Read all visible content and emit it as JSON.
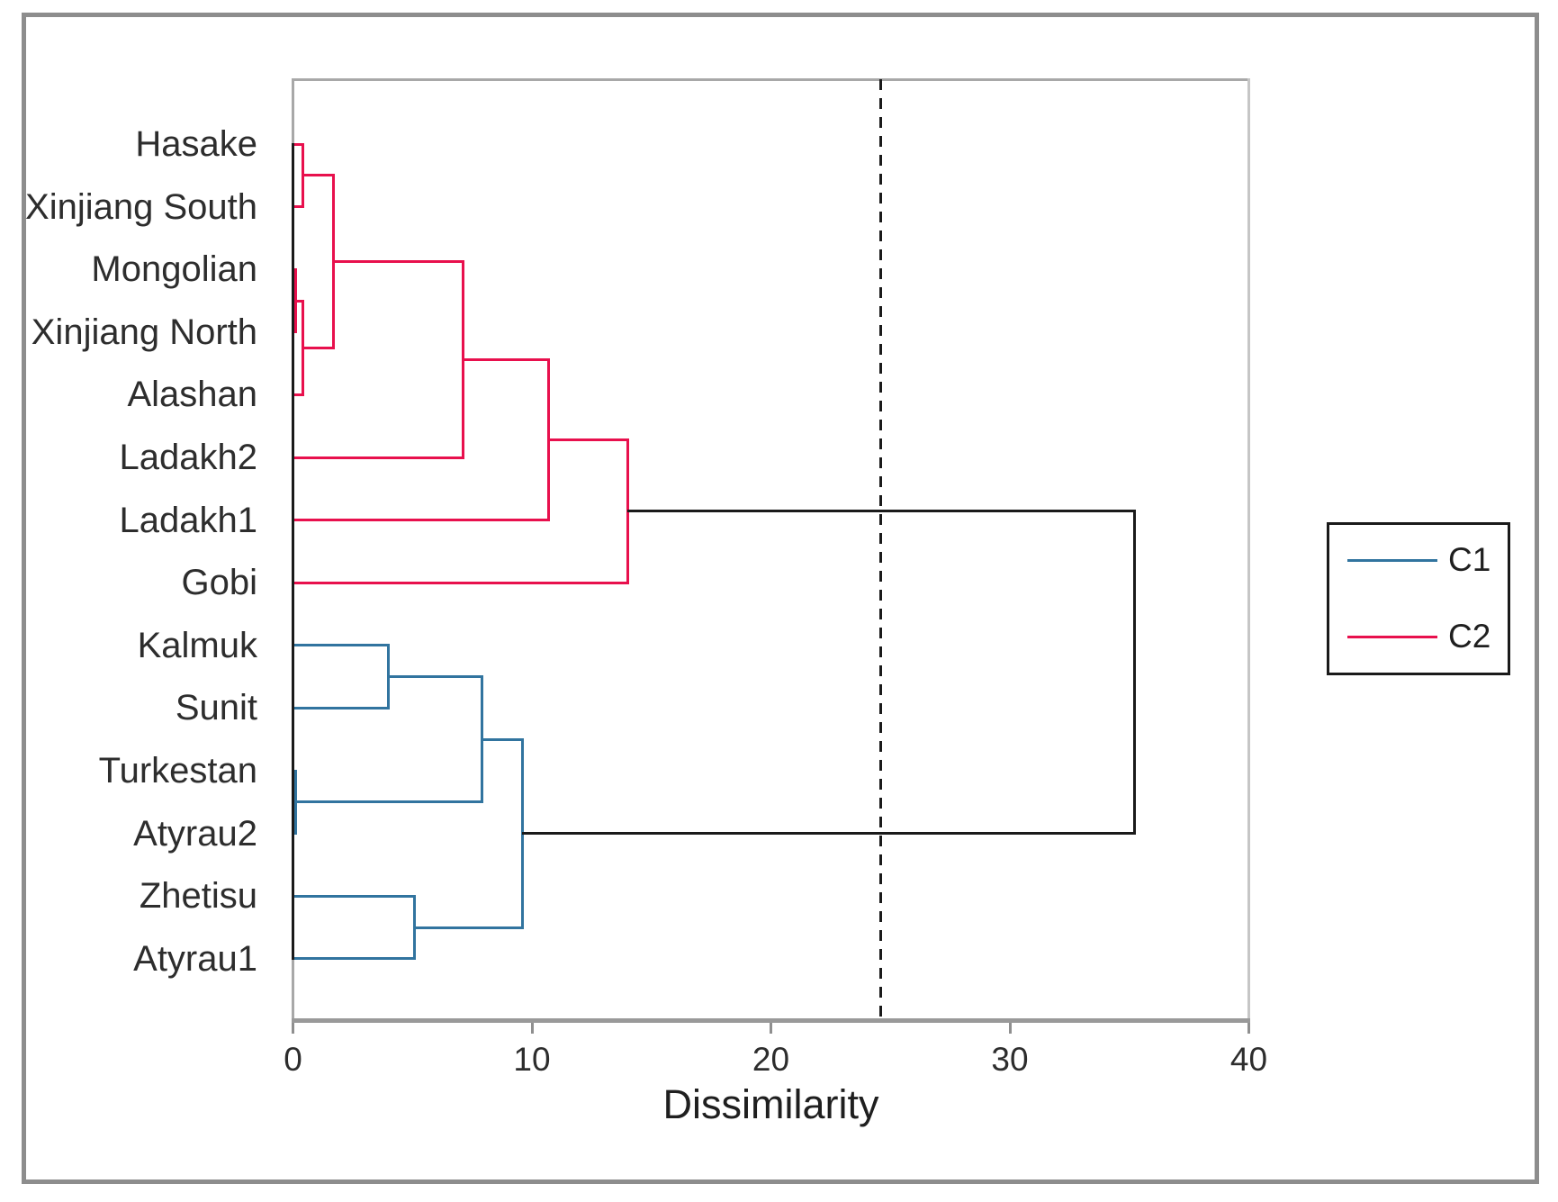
{
  "figure": {
    "background": "#ffffff",
    "border_color": "#8d8d8d"
  },
  "axis": {
    "title": "Dissimilarity",
    "min": 0,
    "max": 40,
    "tick_labels": [
      "0",
      "10",
      "20",
      "30",
      "40"
    ]
  },
  "legend": {
    "entries": [
      {
        "label": "C1",
        "color": "#31749f"
      },
      {
        "label": "C2",
        "color": "#e8104d"
      }
    ]
  },
  "chart_data": {
    "type": "dendrogram",
    "orientation": "horizontal",
    "xlabel": "Dissimilarity",
    "x_range": [
      0,
      40
    ],
    "x_ticks": [
      0,
      10,
      20,
      30,
      40
    ],
    "grid": "off",
    "legend_position": "right",
    "cutoff_line": {
      "value": 24.6,
      "style": "dashed",
      "color": "#1a1a1a"
    },
    "root_color": "#1a1a1a",
    "leaves": [
      "Hasake",
      "Xinjiang South",
      "Mongolian",
      "Xinjiang North",
      "Alashan",
      "Ladakh2",
      "Ladakh1",
      "Gobi",
      "Kalmuk",
      "Sunit",
      "Turkestan",
      "Atyrau2",
      "Zhetisu",
      "Atyrau1"
    ],
    "clusters": [
      {
        "name": "C1",
        "color": "#31749f",
        "members": [
          "Kalmuk",
          "Sunit",
          "Turkestan",
          "Atyrau2",
          "Zhetisu",
          "Atyrau1"
        ]
      },
      {
        "name": "C2",
        "color": "#e8104d",
        "members": [
          "Hasake",
          "Xinjiang South",
          "Mongolian",
          "Xinjiang North",
          "Alashan",
          "Ladakh2",
          "Ladakh1",
          "Gobi"
        ]
      }
    ],
    "merges": [
      {
        "id": "n1",
        "a": "Hasake",
        "b": "Xinjiang South",
        "height": 0.4,
        "cluster": "C2"
      },
      {
        "id": "n2",
        "a": "Mongolian",
        "b": "Xinjiang North",
        "height": 0.1,
        "cluster": "C2"
      },
      {
        "id": "n3",
        "a": "n2",
        "b": "Alashan",
        "height": 0.4,
        "cluster": "C2"
      },
      {
        "id": "n4",
        "a": "n1",
        "b": "n3",
        "height": 1.7,
        "cluster": "C2"
      },
      {
        "id": "n5",
        "a": "n4",
        "b": "Ladakh2",
        "height": 7.1,
        "cluster": "C2"
      },
      {
        "id": "n6",
        "a": "n5",
        "b": "Ladakh1",
        "height": 10.7,
        "cluster": "C2"
      },
      {
        "id": "n7",
        "a": "n6",
        "b": "Gobi",
        "height": 14.0,
        "cluster": "C2"
      },
      {
        "id": "n8",
        "a": "Kalmuk",
        "b": "Sunit",
        "height": 4.0,
        "cluster": "C1"
      },
      {
        "id": "n9",
        "a": "Turkestan",
        "b": "Atyrau2",
        "height": 0.1,
        "cluster": "C1"
      },
      {
        "id": "n10",
        "a": "n8",
        "b": "n9",
        "height": 7.9,
        "cluster": "C1"
      },
      {
        "id": "n11",
        "a": "Zhetisu",
        "b": "Atyrau1",
        "height": 5.1,
        "cluster": "C1"
      },
      {
        "id": "n12",
        "a": "n10",
        "b": "n11",
        "height": 9.6,
        "cluster": "C1"
      },
      {
        "id": "root",
        "a": "n7",
        "b": "n12",
        "height": 35.2,
        "cluster": "root"
      }
    ]
  }
}
